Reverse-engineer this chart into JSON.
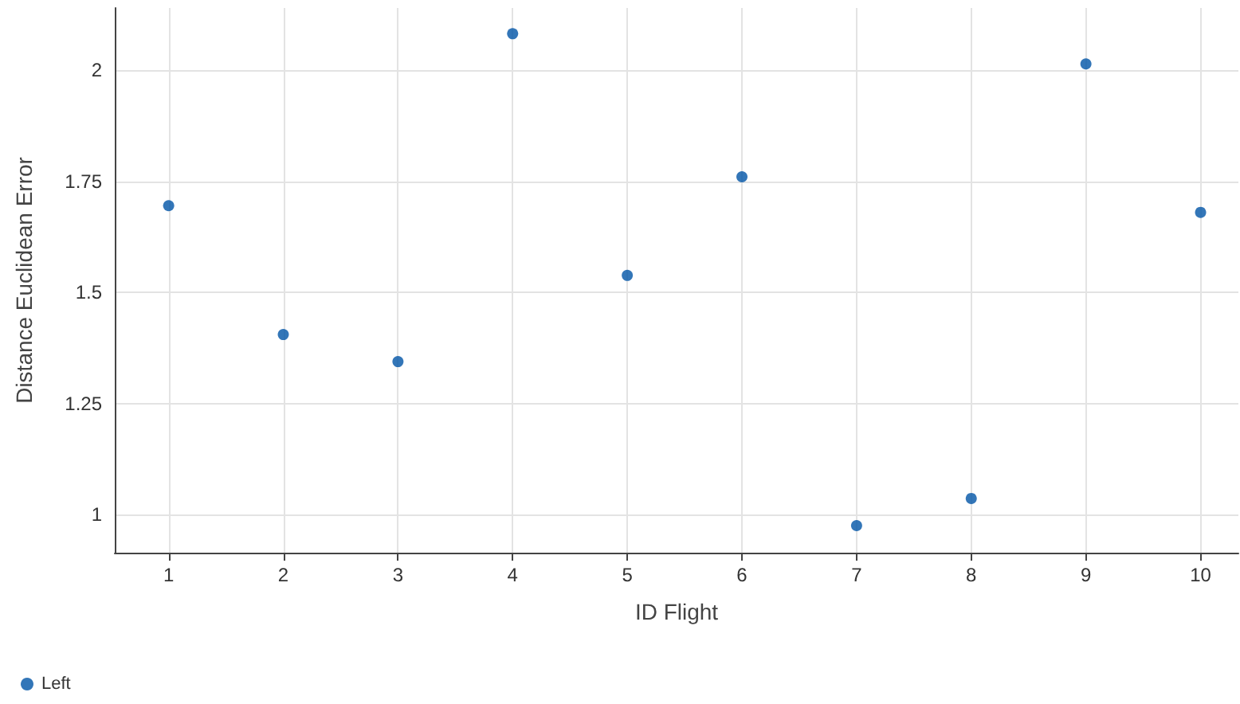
{
  "chart_data": {
    "type": "scatter",
    "xlabel": "ID Flight",
    "ylabel": "Distance Euclidean Error",
    "x": [
      1,
      2,
      3,
      4,
      5,
      6,
      7,
      8,
      9,
      10
    ],
    "series": [
      {
        "name": "Left",
        "color": "#0054a6",
        "values": [
          1.695,
          1.405,
          1.344,
          2.082,
          1.538,
          1.76,
          0.975,
          1.036,
          2.014,
          1.68
        ]
      }
    ],
    "xlim": [
      0.53,
      10.33
    ],
    "xticks": [
      1,
      2,
      3,
      4,
      5,
      6,
      7,
      8,
      9,
      10
    ],
    "ylim": [
      0.914,
      2.14
    ],
    "yticks": [
      1,
      1.25,
      1.5,
      1.75,
      2
    ],
    "grid": true,
    "legend": "bottom left",
    "marker": "circle"
  }
}
